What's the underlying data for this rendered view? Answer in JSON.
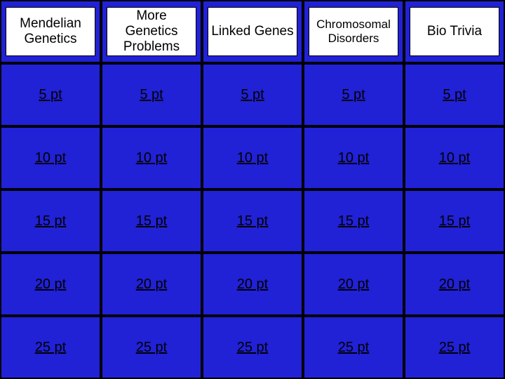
{
  "board": {
    "type": "table",
    "columns": 5,
    "rows": 6,
    "background_color": "#2121d6",
    "cell_border_color": "#000000",
    "header_inner_bg": "#ffffff",
    "header_text_color": "#000000",
    "point_text_color": "#000000",
    "header_fontsize": 19,
    "point_fontsize": 20,
    "categories": [
      {
        "label": "Mendelian Genetics",
        "fontsize": 19
      },
      {
        "label": "More Genetics Problems",
        "fontsize": 19
      },
      {
        "label": "Linked Genes",
        "fontsize": 19
      },
      {
        "label": "Chromosomal Disorders",
        "fontsize": 17
      },
      {
        "label": "Bio Trivia",
        "fontsize": 19
      }
    ],
    "point_rows": [
      [
        "5 pt",
        "5 pt",
        "5 pt",
        "5 pt",
        "5 pt"
      ],
      [
        "10 pt",
        "10 pt",
        "10 pt",
        "10 pt",
        "10 pt"
      ],
      [
        "15 pt",
        "15 pt",
        "15 pt",
        "15 pt",
        "15 pt"
      ],
      [
        "20 pt",
        "20 pt",
        "20 pt",
        "20 pt",
        "20 pt"
      ],
      [
        "25 pt",
        "25 pt",
        "25 pt",
        "25 pt",
        "25 pt"
      ]
    ]
  }
}
